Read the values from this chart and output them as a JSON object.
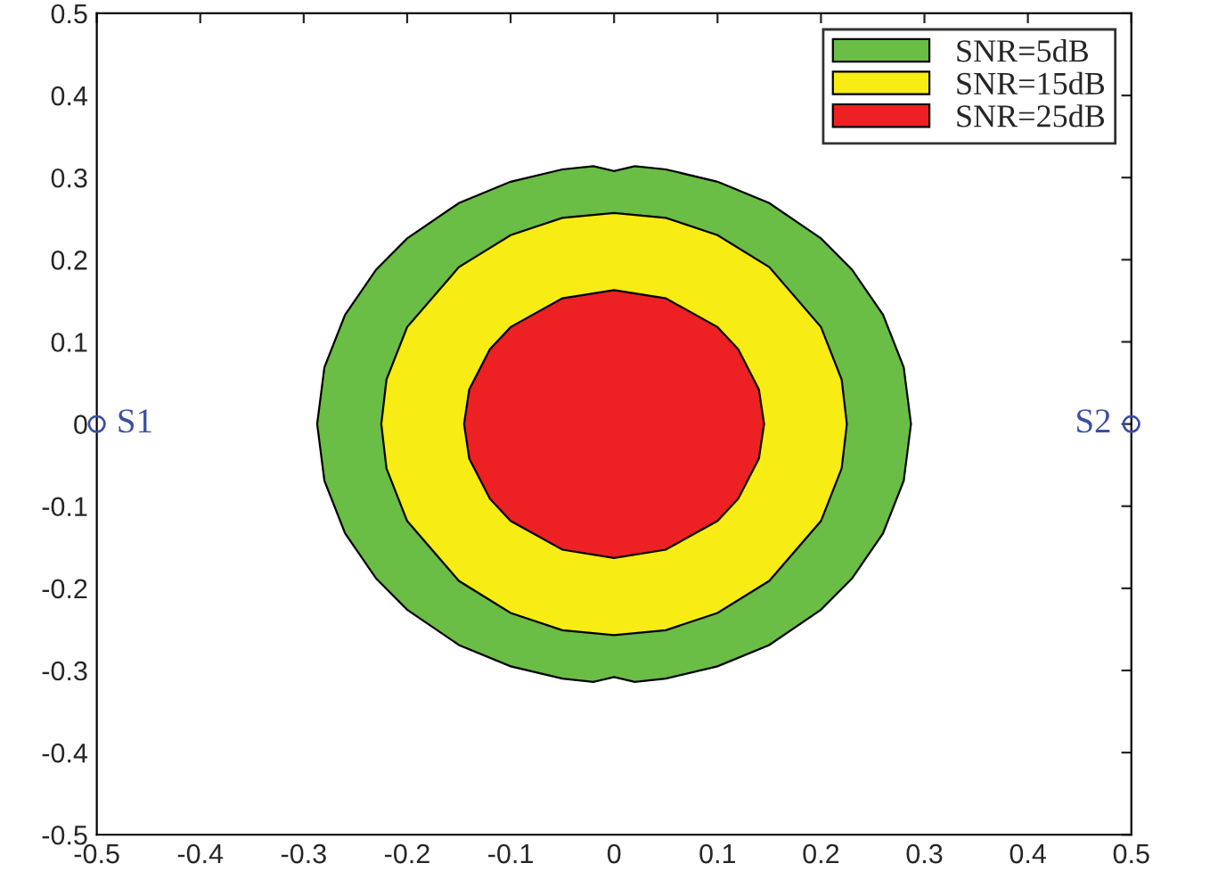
{
  "chart_data": {
    "type": "area",
    "xlim": [
      -0.5,
      0.5
    ],
    "ylim": [
      -0.5,
      0.5
    ],
    "xticks": [
      -0.5,
      -0.4,
      -0.3,
      -0.2,
      -0.1,
      0,
      0.1,
      0.2,
      0.3,
      0.4,
      0.5
    ],
    "yticks": [
      -0.5,
      -0.4,
      -0.3,
      -0.2,
      -0.1,
      0,
      0.1,
      0.2,
      0.3,
      0.4,
      0.5
    ],
    "grid": false,
    "legend": "top right",
    "series": [
      {
        "name": "SNR=5dB",
        "color": "#6abd45",
        "x": [
          -0.287,
          -0.28,
          -0.26,
          -0.23,
          -0.2,
          -0.15,
          -0.1,
          -0.05,
          -0.02,
          0,
          0.02,
          0.05,
          0.1,
          0.15,
          0.2,
          0.23,
          0.26,
          0.28,
          0.287,
          0.28,
          0.26,
          0.23,
          0.2,
          0.15,
          0.1,
          0.05,
          0.02,
          0,
          -0.02,
          -0.05,
          -0.1,
          -0.15,
          -0.2,
          -0.23,
          -0.26,
          -0.28
        ],
        "values": [
          0,
          0.069,
          0.133,
          0.188,
          0.226,
          0.269,
          0.295,
          0.31,
          0.314,
          0.308,
          0.314,
          0.31,
          0.295,
          0.269,
          0.226,
          0.188,
          0.133,
          0.069,
          0,
          -0.069,
          -0.133,
          -0.188,
          -0.226,
          -0.269,
          -0.295,
          -0.31,
          -0.314,
          -0.308,
          -0.314,
          -0.31,
          -0.295,
          -0.269,
          -0.226,
          -0.188,
          -0.133,
          -0.069
        ]
      },
      {
        "name": "SNR=15dB",
        "color": "#f7ec13",
        "x": [
          -0.225,
          -0.22,
          -0.2,
          -0.15,
          -0.1,
          -0.05,
          0,
          0.05,
          0.1,
          0.15,
          0.2,
          0.22,
          0.225,
          0.22,
          0.2,
          0.15,
          0.1,
          0.05,
          0,
          -0.05,
          -0.1,
          -0.15,
          -0.2,
          -0.22
        ],
        "values": [
          0,
          0.054,
          0.118,
          0.191,
          0.23,
          0.251,
          0.257,
          0.251,
          0.23,
          0.191,
          0.118,
          0.054,
          0,
          -0.054,
          -0.118,
          -0.191,
          -0.23,
          -0.251,
          -0.257,
          -0.251,
          -0.23,
          -0.191,
          -0.118,
          -0.054
        ]
      },
      {
        "name": "SNR=25dB",
        "color": "#ed2024",
        "x": [
          -0.145,
          -0.14,
          -0.12,
          -0.1,
          -0.05,
          0,
          0.05,
          0.1,
          0.12,
          0.14,
          0.145,
          0.14,
          0.12,
          0.1,
          0.05,
          0,
          -0.05,
          -0.1,
          -0.12,
          -0.14
        ],
        "values": [
          0,
          0.042,
          0.091,
          0.118,
          0.153,
          0.163,
          0.153,
          0.118,
          0.091,
          0.042,
          0,
          -0.042,
          -0.091,
          -0.118,
          -0.153,
          -0.163,
          -0.153,
          -0.118,
          -0.091,
          -0.042
        ]
      },
      {
        "type": "scatter",
        "color": "#3a4fa0",
        "marker": "circle",
        "x": [
          -0.5,
          0.5
        ],
        "values": [
          0,
          0
        ]
      }
    ],
    "annotations": [
      {
        "text": "S1",
        "x": -0.5,
        "y": 0
      },
      {
        "text": "S2",
        "x": 0.5,
        "y": 0
      }
    ]
  }
}
